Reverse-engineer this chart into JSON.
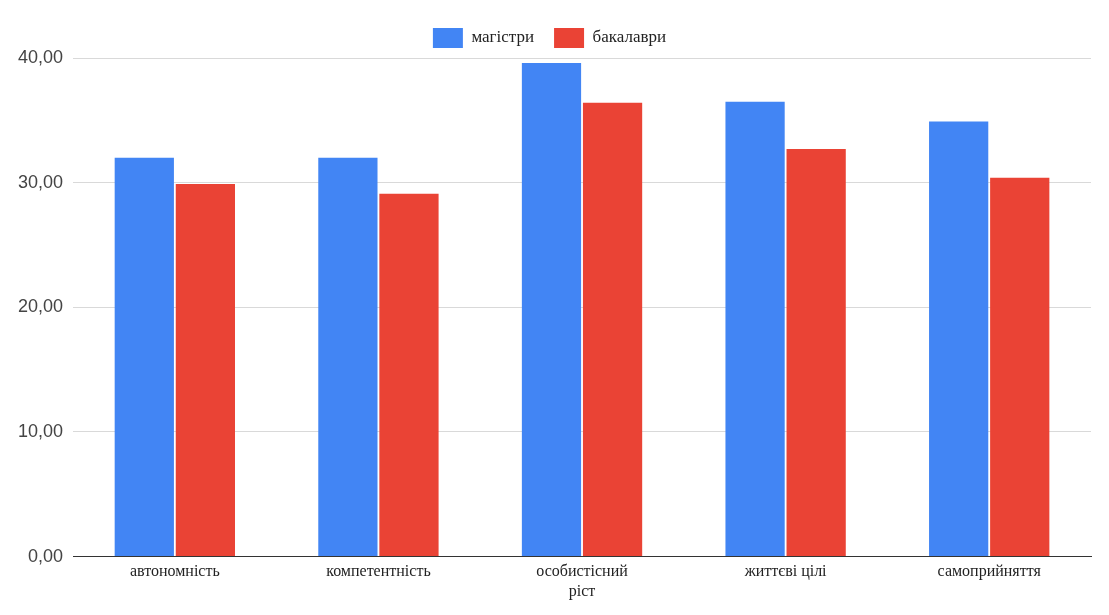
{
  "chart_data": {
    "type": "bar",
    "categories": [
      "автономність",
      "компетентність",
      "особистісний ріст",
      "життєві цілі",
      "самоприйняття"
    ],
    "series": [
      {
        "name": "магістри",
        "color": "#4285f4",
        "values": [
          32.0,
          32.0,
          39.6,
          36.5,
          34.9
        ]
      },
      {
        "name": "бакалаври",
        "color": "#ea4335",
        "values": [
          29.9,
          29.1,
          36.4,
          32.7,
          30.4
        ]
      }
    ],
    "ylim": [
      0,
      40
    ],
    "yticks": [
      {
        "value": 0,
        "label": "0,00"
      },
      {
        "value": 10,
        "label": "10,00"
      },
      {
        "value": 20,
        "label": "20,00"
      },
      {
        "value": 30,
        "label": "30,00"
      },
      {
        "value": 40,
        "label": "40,00"
      }
    ],
    "grid": "y",
    "legend": "top"
  }
}
